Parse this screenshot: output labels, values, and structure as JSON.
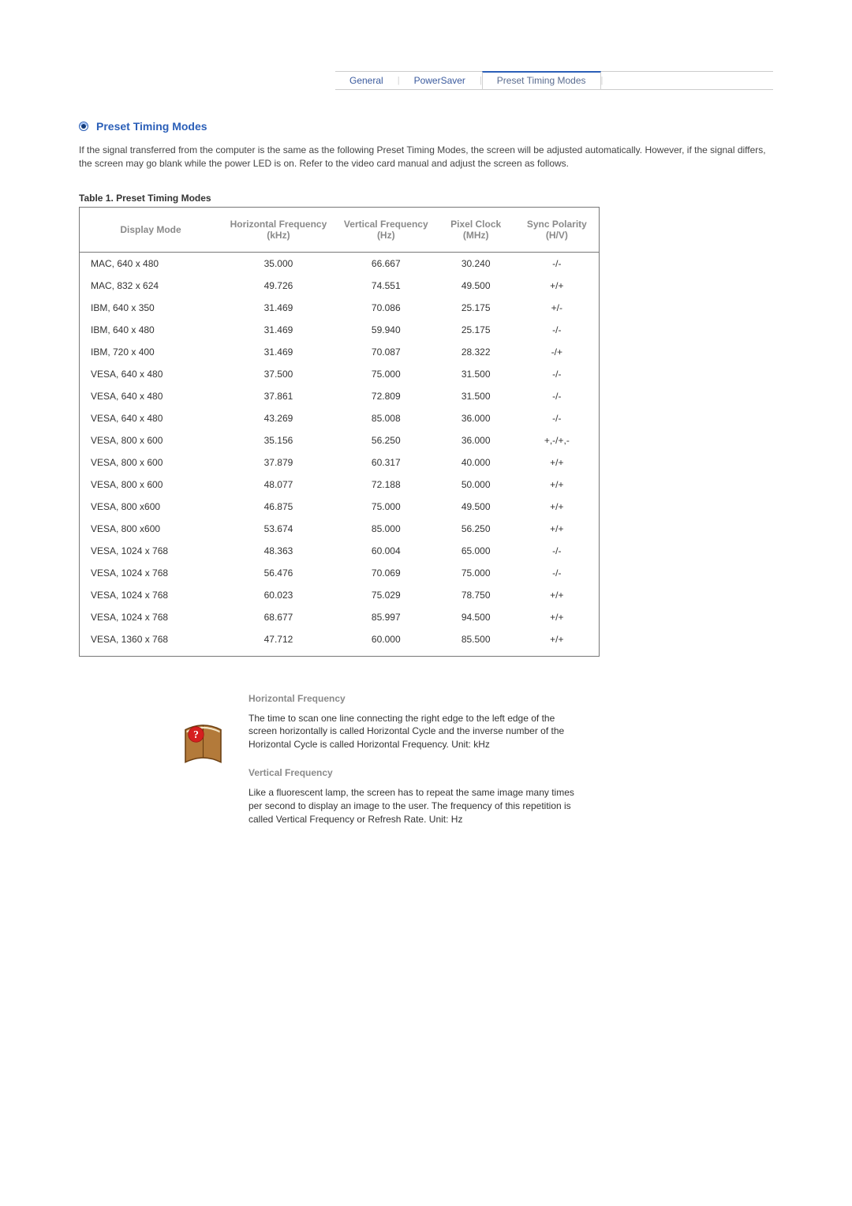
{
  "tabs": {
    "general": "General",
    "powersaver": "PowerSaver",
    "preset": "Preset Timing Modes"
  },
  "heading": "Preset Timing Modes",
  "intro": "If the signal transferred from the computer is the same as the following Preset Timing Modes, the screen will be adjusted automatically. However, if the signal differs, the screen may go blank while the power LED is on. Refer to the video card manual and adjust the screen as follows.",
  "table_caption": "Table 1. Preset Timing Modes",
  "columns": {
    "c0": "Display Mode",
    "c1": "Horizontal Frequency (kHz)",
    "c2": "Vertical Frequency (Hz)",
    "c3": "Pixel Clock (MHz)",
    "c4": "Sync Polarity (H/V)"
  },
  "rows": [
    [
      "MAC, 640 x 480",
      "35.000",
      "66.667",
      "30.240",
      "-/-"
    ],
    [
      "MAC, 832 x 624",
      "49.726",
      "74.551",
      "49.500",
      "+/+"
    ],
    [
      "IBM, 640 x 350",
      "31.469",
      "70.086",
      "25.175",
      "+/-"
    ],
    [
      "IBM, 640 x 480",
      "31.469",
      "59.940",
      "25.175",
      "-/-"
    ],
    [
      "IBM, 720 x 400",
      "31.469",
      "70.087",
      "28.322",
      "-/+"
    ],
    [
      "VESA, 640 x 480",
      "37.500",
      "75.000",
      "31.500",
      "-/-"
    ],
    [
      "VESA, 640 x 480",
      "37.861",
      "72.809",
      "31.500",
      "-/-"
    ],
    [
      "VESA, 640 x 480",
      "43.269",
      "85.008",
      "36.000",
      "-/-"
    ],
    [
      "VESA, 800 x 600",
      "35.156",
      "56.250",
      "36.000",
      "+,-/+,-"
    ],
    [
      "VESA, 800 x 600",
      "37.879",
      "60.317",
      "40.000",
      "+/+"
    ],
    [
      "VESA, 800 x 600",
      "48.077",
      "72.188",
      "50.000",
      "+/+"
    ],
    [
      "VESA, 800 x600",
      "46.875",
      "75.000",
      "49.500",
      "+/+"
    ],
    [
      "VESA, 800 x600",
      "53.674",
      "85.000",
      "56.250",
      "+/+"
    ],
    [
      "VESA, 1024 x 768",
      "48.363",
      "60.004",
      "65.000",
      "-/-"
    ],
    [
      "VESA, 1024 x 768",
      "56.476",
      "70.069",
      "75.000",
      "-/-"
    ],
    [
      "VESA, 1024 x 768",
      "60.023",
      "75.029",
      "78.750",
      "+/+"
    ],
    [
      "VESA, 1024 x 768",
      "68.677",
      "85.997",
      "94.500",
      "+/+"
    ],
    [
      "VESA, 1360 x 768",
      "47.712",
      "60.000",
      "85.500",
      "+/+"
    ]
  ],
  "defs": {
    "hf_title": "Horizontal Frequency",
    "hf_body": "The time to scan one line connecting the right edge to the left edge of the screen horizontally is called Horizontal Cycle and the inverse number of the Horizontal Cycle is called Horizontal Frequency. Unit: kHz",
    "vf_title": "Vertical Frequency",
    "vf_body": "Like a fluorescent lamp, the screen has to repeat the same image many times per second to display an image to the user. The frequency of this repetition is called Vertical Frequency or Refresh Rate. Unit: Hz"
  },
  "colors": {
    "link": "#3b5b9e",
    "accent": "#2b5fb8",
    "muted": "#8a8a8a",
    "border": "#777777"
  }
}
